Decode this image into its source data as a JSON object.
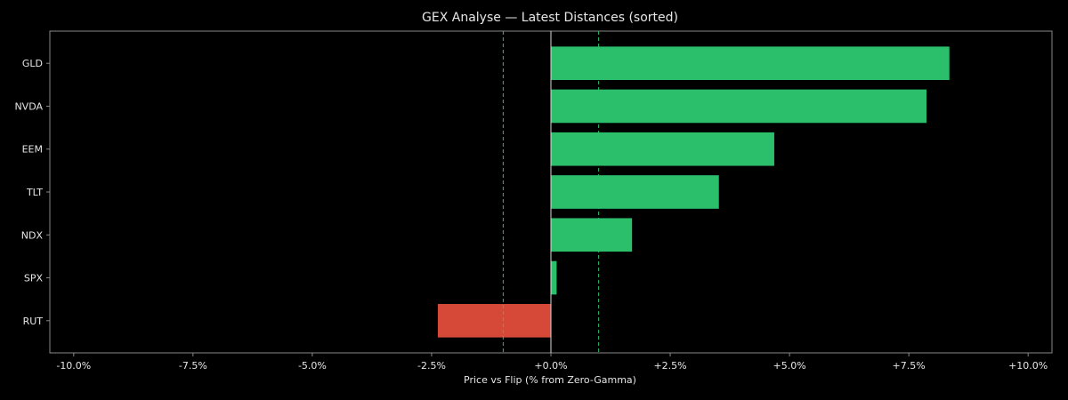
{
  "chart_data": {
    "type": "bar",
    "orientation": "horizontal",
    "title": "GEX Analyse — Latest Distances (sorted)",
    "xlabel": "Price vs Flip (% from Zero-Gamma)",
    "ylabel": "",
    "xlim": [
      -10.5,
      10.5
    ],
    "x_ticks": [
      -10,
      -7.5,
      -5,
      -2.5,
      0,
      2.5,
      5,
      7.5,
      10
    ],
    "x_tick_labels": [
      "-10.0%",
      "-7.5%",
      "-5.0%",
      "-2.5%",
      "+0.0%",
      "+2.5%",
      "+5.0%",
      "+7.5%",
      "+10.0%"
    ],
    "categories": [
      "GLD",
      "NVDA",
      "EEM",
      "TLT",
      "NDX",
      "SPX",
      "RUT"
    ],
    "values": [
      8.35,
      7.87,
      4.68,
      3.52,
      1.7,
      0.12,
      -2.37
    ],
    "reference_lines": [
      -1,
      1
    ],
    "grid": false,
    "legend": "none",
    "colors": {
      "positive": "#2bbf6c",
      "negative": "#d64838",
      "reference": "#2bbf6c",
      "zero_line": "#d8d8d8",
      "axes": "#888888",
      "text": "#e6e6e6",
      "background": "#000000"
    }
  }
}
